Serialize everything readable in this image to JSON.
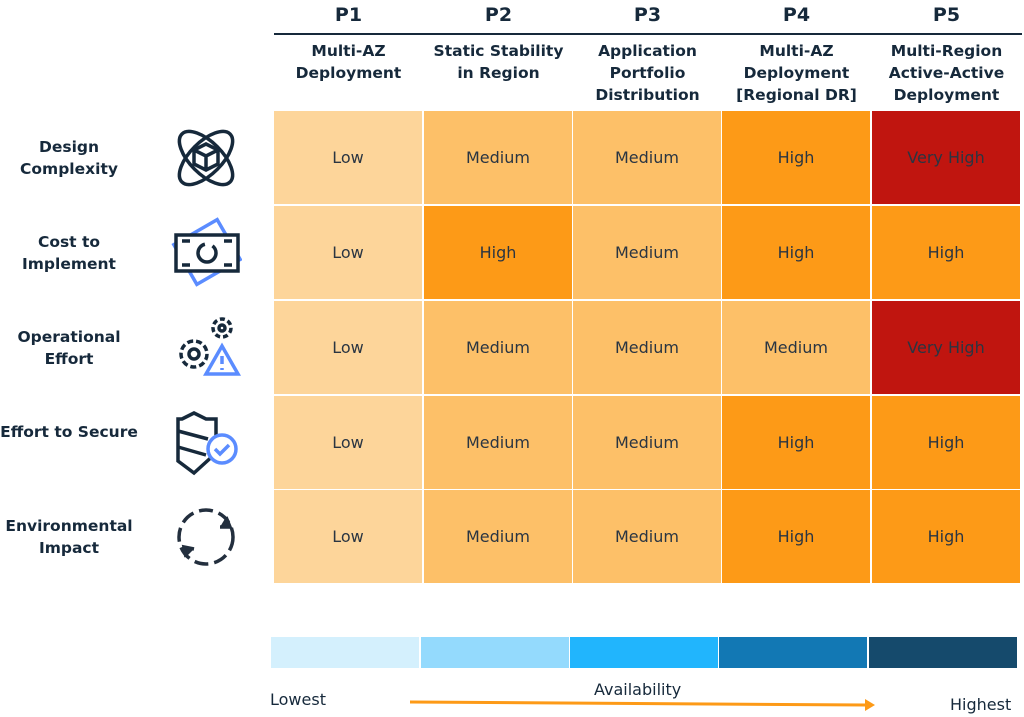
{
  "columns": [
    {
      "id": "P1",
      "title": "Multi-AZ Deployment"
    },
    {
      "id": "P2",
      "title": "Static Stability in Region"
    },
    {
      "id": "P3",
      "title": "Application Portfolio Distribution"
    },
    {
      "id": "P4",
      "title": "Multi-AZ Deployment [Regional DR]"
    },
    {
      "id": "P5",
      "title": "Multi-Region Active-Active Deployment"
    }
  ],
  "rows": [
    {
      "label": "Design Complexity",
      "icon": "atom-cube-icon",
      "values": [
        "Low",
        "Medium",
        "Medium",
        "High",
        "Very High"
      ]
    },
    {
      "label": "Cost to Implement",
      "icon": "money-bill-icon",
      "values": [
        "Low",
        "High",
        "Medium",
        "High",
        "High"
      ]
    },
    {
      "label": "Operational Effort",
      "icon": "gears-warning-icon",
      "values": [
        "Low",
        "Medium",
        "Medium",
        "Medium",
        "Very High"
      ]
    },
    {
      "label": "Effort to Secure",
      "icon": "shield-check-icon",
      "values": [
        "Low",
        "Medium",
        "Medium",
        "High",
        "High"
      ]
    },
    {
      "label": "Environmental Impact",
      "icon": "recycle-arrows-icon",
      "values": [
        "Low",
        "Medium",
        "Medium",
        "High",
        "High"
      ]
    }
  ],
  "level_colors": {
    "Low": "#FDD59A",
    "Medium": "#FDC068",
    "High": "#FD9A17",
    "Very High": "#C0150F"
  },
  "legend": {
    "colors": [
      "#D4F0FD",
      "#94DAFD",
      "#21B5FD",
      "#1278B4",
      "#154A6C"
    ],
    "label": "Availability",
    "low": "Lowest",
    "high": "Highest",
    "arrow_color": "#FD9A17"
  }
}
